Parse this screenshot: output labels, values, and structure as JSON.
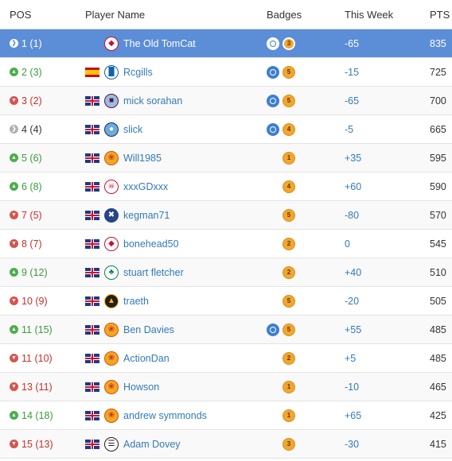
{
  "header": {
    "pos": "POS",
    "player": "Player Name",
    "badges": "Badges",
    "week": "This Week",
    "pts": "PTS"
  },
  "rows": [
    {
      "dir": "same",
      "pos": "1 (1)",
      "flag": "none",
      "crest": "bristol-city",
      "name": "The Old TomCat",
      "blue": true,
      "gold": "3",
      "week": "-65",
      "pts": "835",
      "selected": true
    },
    {
      "dir": "up",
      "pos": "2 (3)",
      "flag": "es",
      "crest": "huddersfield",
      "name": "Rcgills",
      "blue": true,
      "gold": "5",
      "week": "-15",
      "pts": "725"
    },
    {
      "dir": "down",
      "pos": "3 (2)",
      "flag": "gb",
      "crest": "aston-villa",
      "name": "mick sorahan",
      "blue": true,
      "gold": "5",
      "week": "-65",
      "pts": "700"
    },
    {
      "dir": "same",
      "pos": "4 (4)",
      "flag": "gb",
      "crest": "man-city",
      "name": "slick",
      "blue": true,
      "gold": "4",
      "week": "-5",
      "pts": "665"
    },
    {
      "dir": "up",
      "pos": "5 (6)",
      "flag": "gb",
      "crest": "ball",
      "name": "Will1985",
      "blue": false,
      "gold": "1",
      "week": "+35",
      "pts": "595"
    },
    {
      "dir": "up",
      "pos": "6 (8)",
      "flag": "gb",
      "crest": "liverpool",
      "name": "xxxGDxxx",
      "blue": false,
      "gold": "4",
      "week": "+60",
      "pts": "590"
    },
    {
      "dir": "down",
      "pos": "7 (5)",
      "flag": "gb",
      "crest": "everton",
      "name": "kegman71",
      "blue": false,
      "gold": "5",
      "week": "-80",
      "pts": "570"
    },
    {
      "dir": "down",
      "pos": "8 (7)",
      "flag": "gb",
      "crest": "bristol-city",
      "name": "bonehead50",
      "blue": false,
      "gold": "2",
      "week": "0",
      "pts": "545"
    },
    {
      "dir": "up",
      "pos": "9 (12)",
      "flag": "gb",
      "crest": "celtic",
      "name": "stuart fletcher",
      "blue": false,
      "gold": "2",
      "week": "+40",
      "pts": "510"
    },
    {
      "dir": "down",
      "pos": "10 (9)",
      "flag": "gb",
      "crest": "wolves",
      "name": "traeth",
      "blue": false,
      "gold": "5",
      "week": "-20",
      "pts": "505"
    },
    {
      "dir": "up",
      "pos": "11 (15)",
      "flag": "gb",
      "crest": "ball",
      "name": "Ben Davies",
      "blue": true,
      "gold": "5",
      "week": "+55",
      "pts": "485"
    },
    {
      "dir": "down",
      "pos": "11 (10)",
      "flag": "gb",
      "crest": "ball",
      "name": "ActionDan",
      "blue": false,
      "gold": "2",
      "week": "+5",
      "pts": "485"
    },
    {
      "dir": "down",
      "pos": "13 (11)",
      "flag": "gb",
      "crest": "ball",
      "name": "Howson",
      "blue": false,
      "gold": "1",
      "week": "-10",
      "pts": "465"
    },
    {
      "dir": "up",
      "pos": "14 (18)",
      "flag": "gb",
      "crest": "ball",
      "name": "andrew symmonds",
      "blue": false,
      "gold": "1",
      "week": "+65",
      "pts": "425"
    },
    {
      "dir": "down",
      "pos": "15 (13)",
      "flag": "gb",
      "crest": "newcastle",
      "name": "Adam Dovey",
      "blue": false,
      "gold": "3",
      "week": "-30",
      "pts": "415"
    }
  ]
}
